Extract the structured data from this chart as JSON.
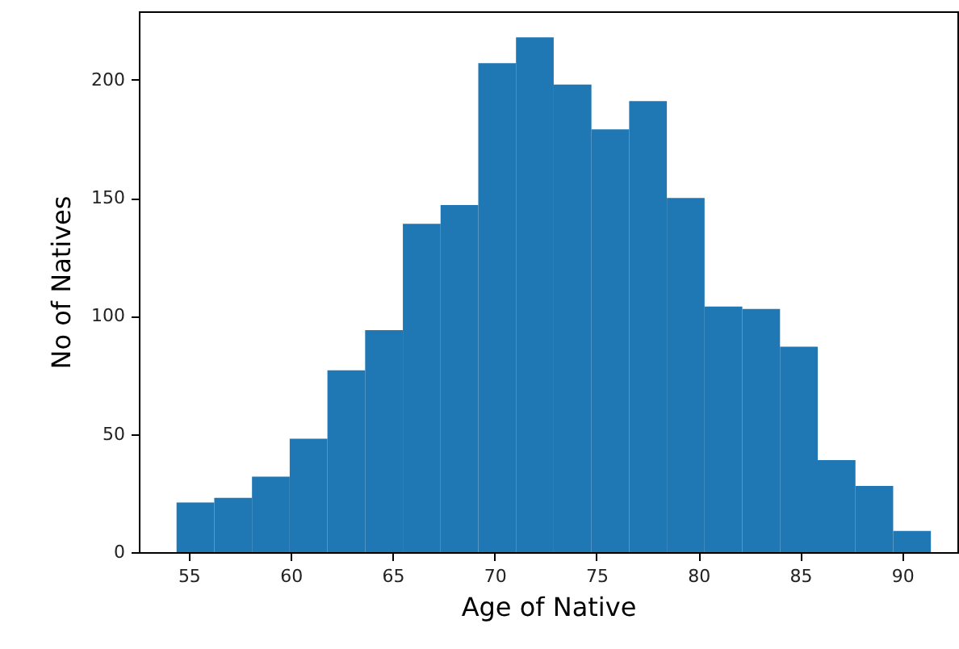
{
  "chart_data": {
    "type": "histogram",
    "xlabel": "Age of Native",
    "ylabel": "No of Natives",
    "color": "#1f77b4",
    "bins": [
      54.4,
      56.25,
      58.1,
      59.95,
      61.8,
      63.65,
      65.5,
      67.35,
      69.2,
      71.05,
      72.9,
      74.75,
      76.6,
      78.45,
      80.3,
      82.15,
      84.0,
      85.85,
      87.7,
      89.55,
      91.4
    ],
    "values": [
      21,
      23,
      32,
      48,
      77,
      94,
      139,
      147,
      207,
      218,
      198,
      179,
      191,
      150,
      104,
      103,
      87,
      39,
      28,
      9
    ],
    "xlim": [
      52.55,
      92.7
    ],
    "xticks": [
      55,
      60,
      65,
      70,
      75,
      80,
      85,
      90
    ],
    "ylim": [
      0,
      229
    ],
    "yticks": [
      0,
      50,
      100,
      150,
      200
    ],
    "grid": false
  }
}
